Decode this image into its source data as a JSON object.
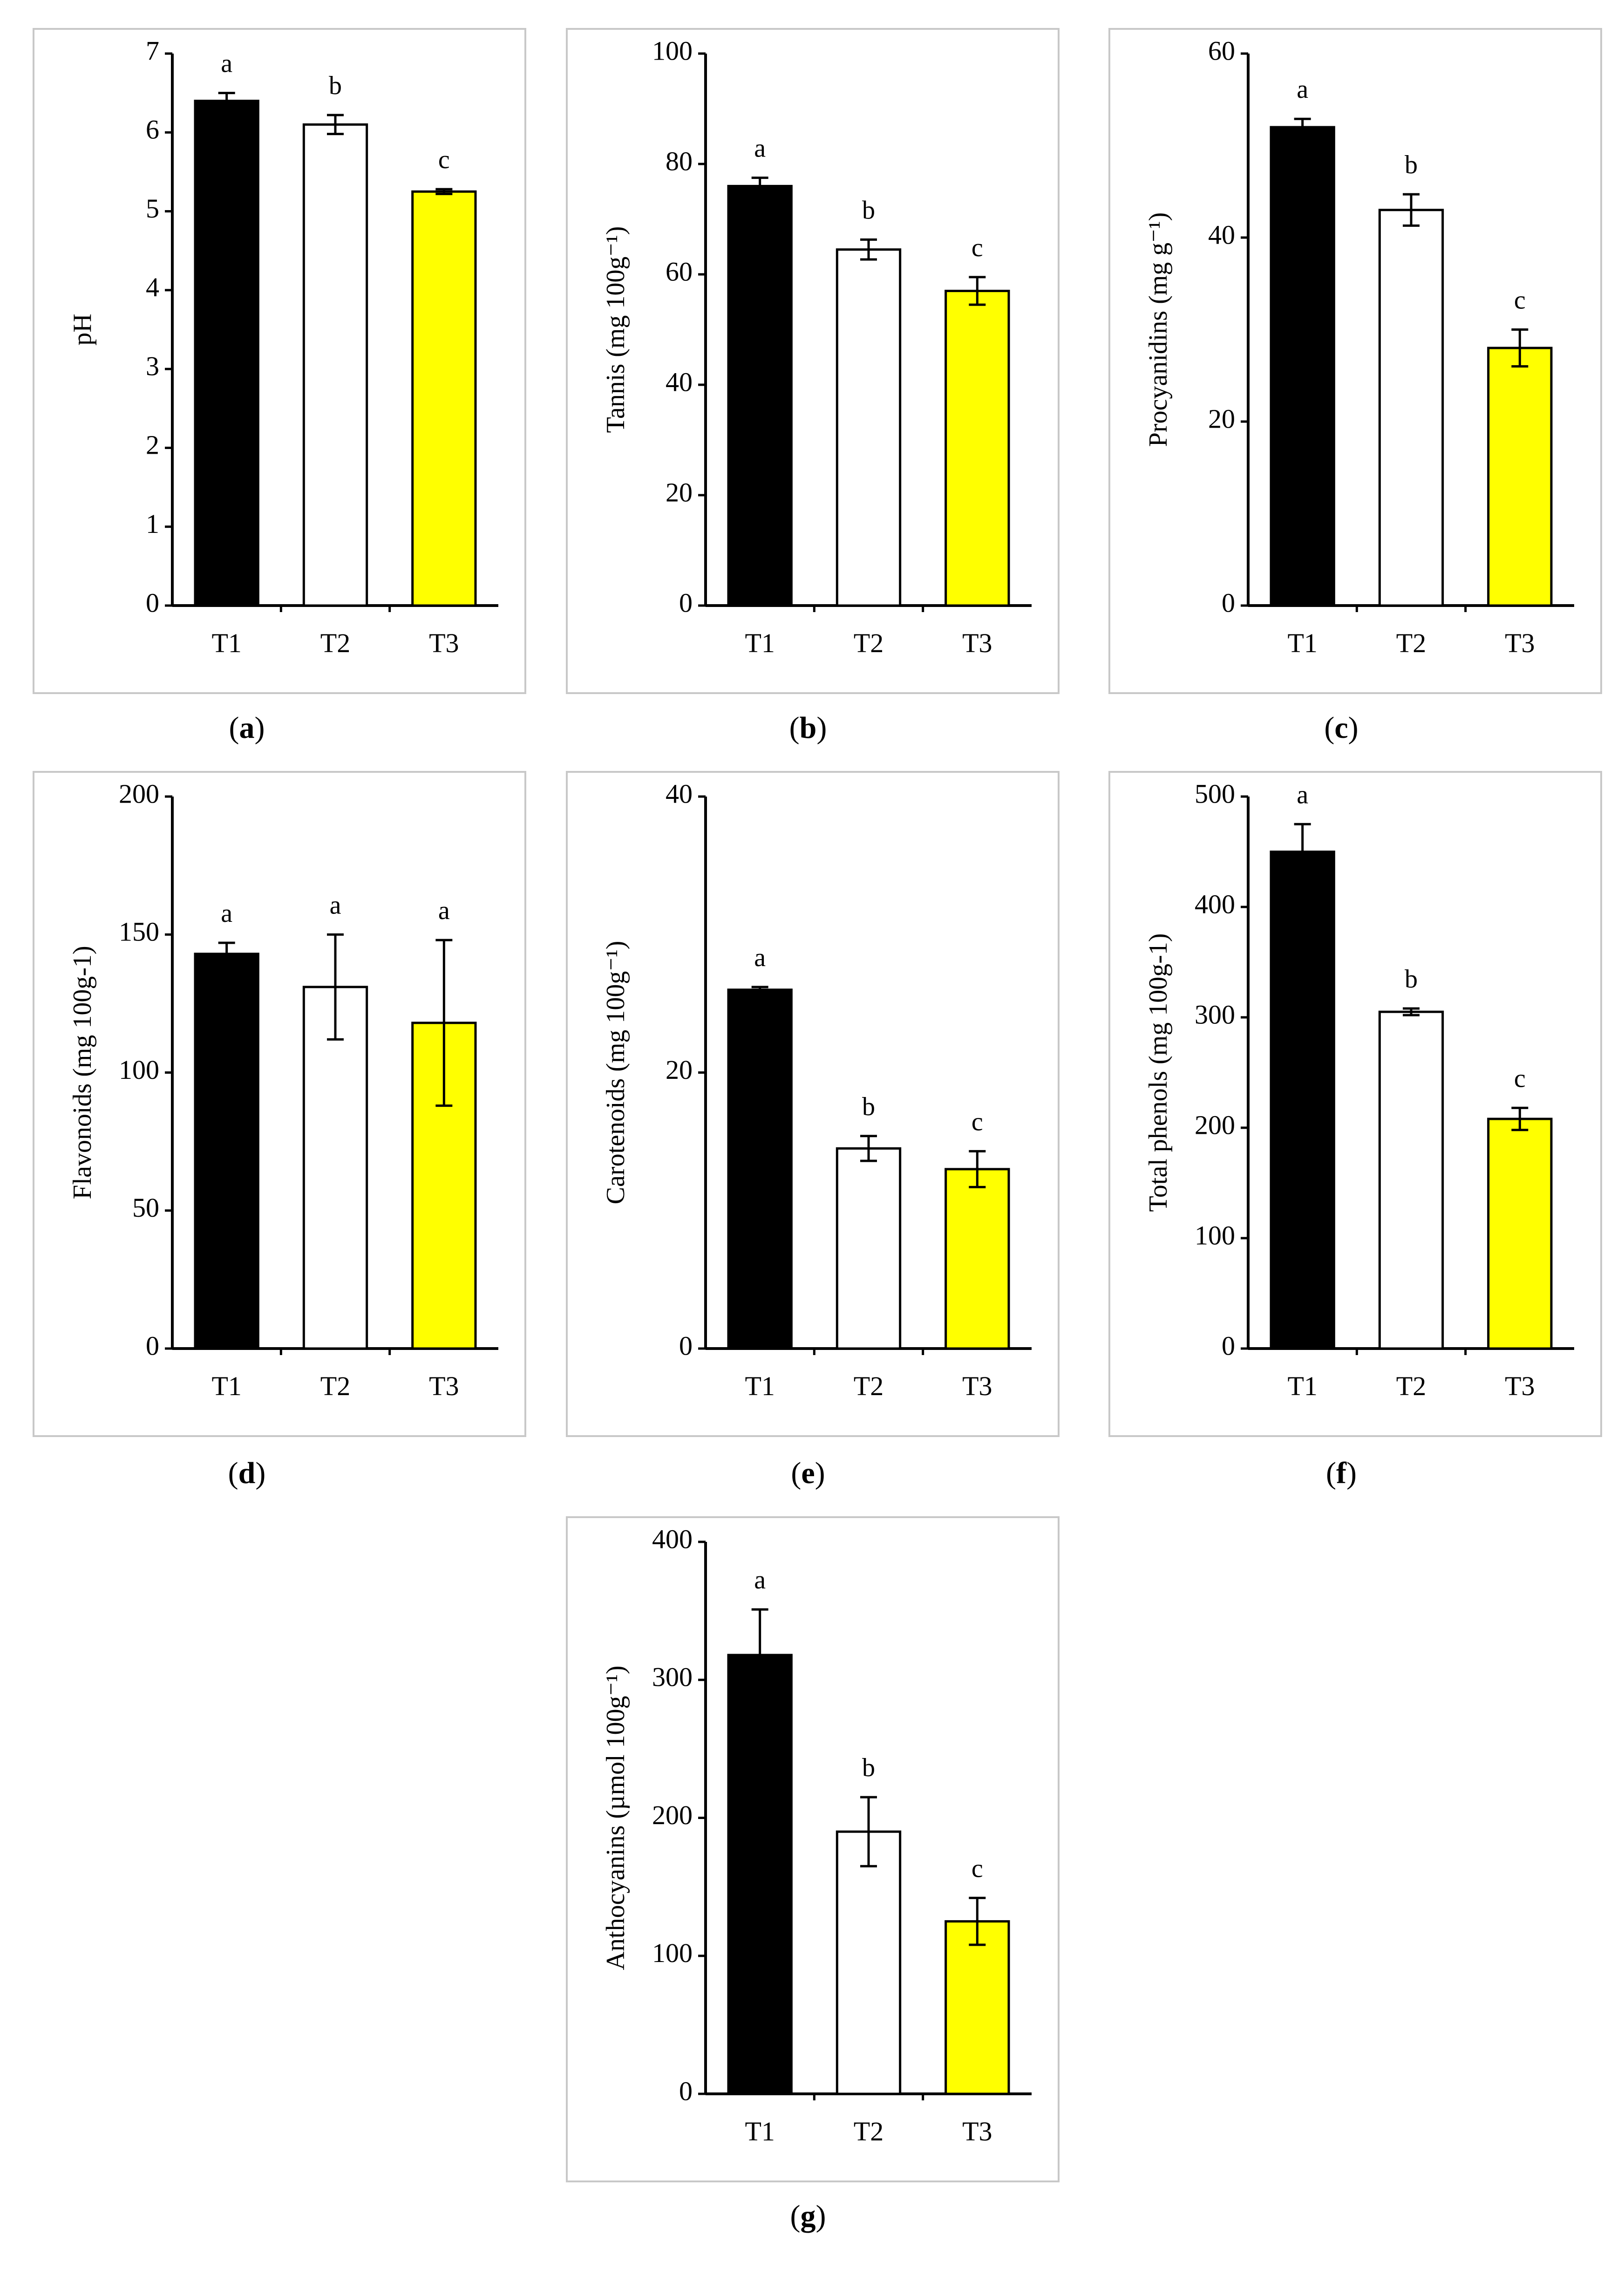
{
  "chart_data": [
    {
      "id": "a",
      "type": "bar",
      "caption": "a",
      "ylabel": "pH",
      "categories": [
        "T1",
        "T2",
        "T3"
      ],
      "values": [
        6.4,
        6.1,
        5.25
      ],
      "errors": [
        0.1,
        0.12,
        0.03
      ],
      "letters": [
        "a",
        "b",
        "c"
      ],
      "colors": [
        "#000000",
        "#ffffff",
        "#ffff00"
      ],
      "ylim": [
        0,
        7
      ],
      "yticks": [
        0,
        1,
        2,
        3,
        4,
        5,
        6,
        7
      ]
    },
    {
      "id": "b",
      "type": "bar",
      "caption": "b",
      "ylabel": "Tannis (mg 100g⁻¹)",
      "categories": [
        "T1",
        "T2",
        "T3"
      ],
      "values": [
        76,
        64.5,
        57
      ],
      "errors": [
        1.5,
        1.8,
        2.5
      ],
      "letters": [
        "a",
        "b",
        "c"
      ],
      "colors": [
        "#000000",
        "#ffffff",
        "#ffff00"
      ],
      "ylim": [
        0,
        100
      ],
      "yticks": [
        0,
        20,
        40,
        60,
        80,
        100
      ]
    },
    {
      "id": "c",
      "type": "bar",
      "caption": "c",
      "ylabel": "Procyanidins (mg g⁻¹)",
      "categories": [
        "T1",
        "T2",
        "T3"
      ],
      "values": [
        52,
        43,
        28
      ],
      "errors": [
        0.9,
        1.7,
        2.0
      ],
      "letters": [
        "a",
        "b",
        "c"
      ],
      "colors": [
        "#000000",
        "#ffffff",
        "#ffff00"
      ],
      "ylim": [
        0,
        60
      ],
      "yticks": [
        0,
        20,
        40,
        60
      ]
    },
    {
      "id": "d",
      "type": "bar",
      "caption": "d",
      "ylabel": "Flavonoids (mg 100g-1)",
      "categories": [
        "T1",
        "T2",
        "T3"
      ],
      "values": [
        143,
        131,
        118
      ],
      "errors": [
        4,
        19,
        30
      ],
      "letters": [
        "a",
        "a",
        "a"
      ],
      "colors": [
        "#000000",
        "#ffffff",
        "#ffff00"
      ],
      "ylim": [
        0,
        200
      ],
      "yticks": [
        0,
        50,
        100,
        150,
        200
      ]
    },
    {
      "id": "e",
      "type": "bar",
      "caption": "e",
      "ylabel": "Carotenoids (mg 100g⁻¹)",
      "categories": [
        "T1",
        "T2",
        "T3"
      ],
      "values": [
        26,
        14.5,
        13
      ],
      "errors": [
        0.2,
        0.9,
        1.3
      ],
      "letters": [
        "a",
        "b",
        "c"
      ],
      "colors": [
        "#000000",
        "#ffffff",
        "#ffff00"
      ],
      "ylim": [
        0,
        40
      ],
      "yticks": [
        0,
        20,
        40
      ]
    },
    {
      "id": "f",
      "type": "bar",
      "caption": "f",
      "ylabel": "Total phenols (mg 100g-1)",
      "categories": [
        "T1",
        "T2",
        "T3"
      ],
      "values": [
        450,
        305,
        208
      ],
      "errors": [
        25,
        3,
        10
      ],
      "letters": [
        "a",
        "b",
        "c"
      ],
      "colors": [
        "#000000",
        "#ffffff",
        "#ffff00"
      ],
      "ylim": [
        0,
        500
      ],
      "yticks": [
        0,
        100,
        200,
        300,
        400,
        500
      ]
    },
    {
      "id": "g",
      "type": "bar",
      "caption": "g",
      "ylabel": "Anthocyanins (µmol 100g⁻¹)",
      "categories": [
        "T1",
        "T2",
        "T3"
      ],
      "values": [
        318,
        190,
        125
      ],
      "errors": [
        33,
        25,
        17
      ],
      "letters": [
        "a",
        "b",
        "c"
      ],
      "colors": [
        "#000000",
        "#ffffff",
        "#ffff00"
      ],
      "ylim": [
        0,
        400
      ],
      "yticks": [
        0,
        100,
        200,
        300,
        400
      ]
    }
  ]
}
